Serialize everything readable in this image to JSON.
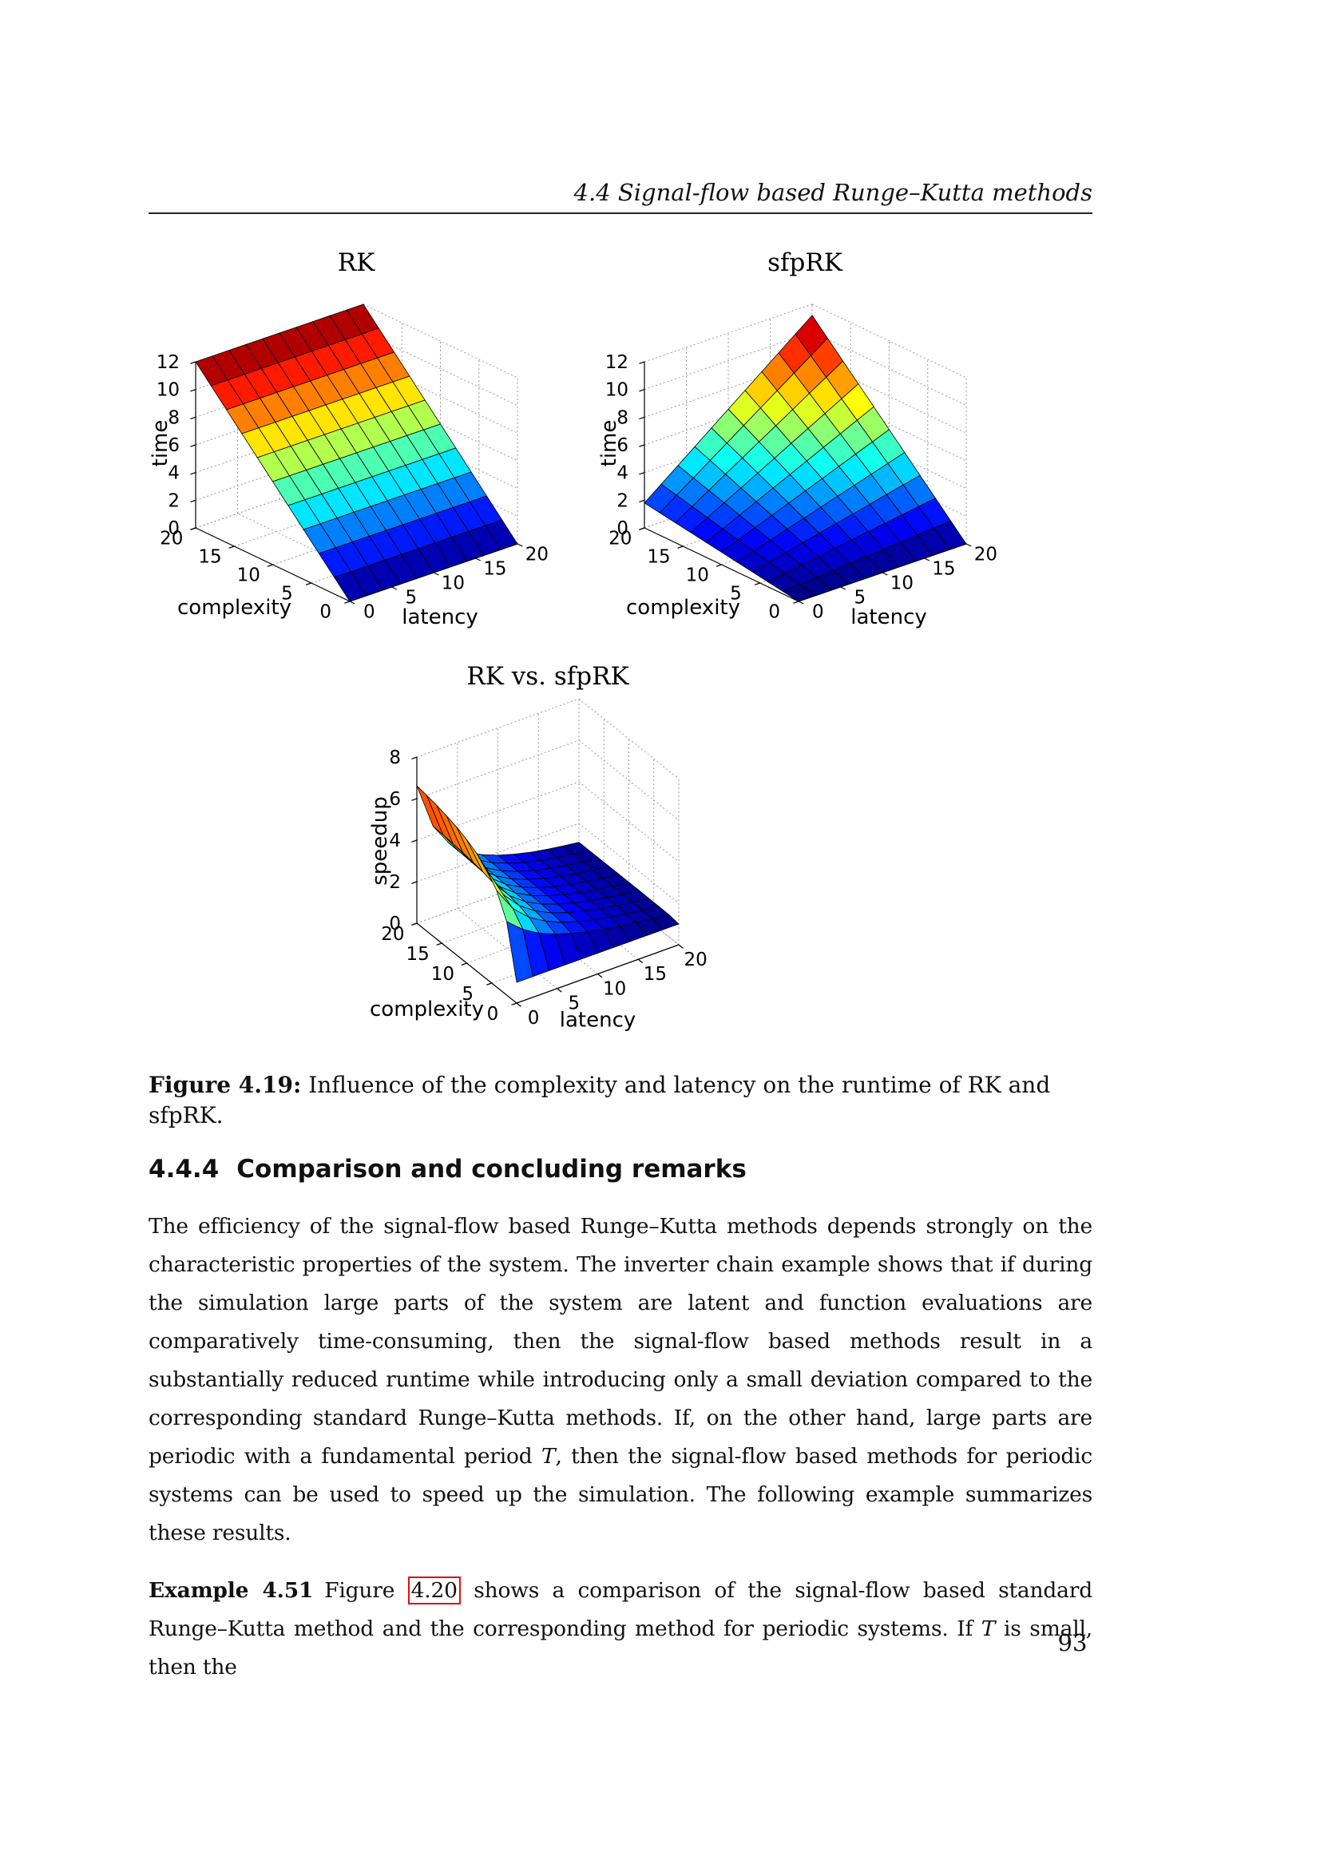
{
  "document": {
    "running_header": "4.4 Signal-flow based Runge–Kutta methods",
    "figure_caption": {
      "label": "Figure 4.19:",
      "text": " Influence of the complexity and latency on the runtime of RK and sfpRK."
    },
    "section_heading": {
      "number": "4.4.4",
      "title": "Comparison and concluding remarks"
    },
    "paragraph": {
      "part1": "The efficiency of the signal-flow based Runge–Kutta methods depends strongly on the characteristic properties of the system. The inverter chain example shows that if during the simulation large parts of the system are latent and function evaluations are comparatively time-consuming, then the signal-flow based methods result in a substantially reduced runtime while introducing only a small deviation compared to the corresponding standard Runge–Kutta methods. If, on the other hand, large parts are periodic with a fundamental period ",
      "math_t": "T",
      "part2": ", then the signal-flow based methods for periodic systems can be used to speed up the simulation. The following example summarizes these results."
    },
    "example": {
      "label": "Example 4.51",
      "part1": "Figure ",
      "figure_link": "4.20",
      "part2": " shows a comparison of the signal-flow based standard Runge–Kutta method and the corresponding method for periodic systems. If ",
      "math_t": "T",
      "part3": " is small, then the"
    },
    "page_number": "93",
    "link_box_color": "#dd1111"
  },
  "chart_data": [
    {
      "type": "surface",
      "id": "c-rk",
      "title": "RK",
      "xlabel": "latency",
      "ylabel": "complexity",
      "zlabel": "time",
      "x": [
        0,
        2,
        4,
        6,
        8,
        10,
        12,
        14,
        16,
        18,
        20
      ],
      "y": [
        0,
        2,
        4,
        6,
        8,
        10,
        12,
        14,
        16,
        18,
        20
      ],
      "z": [
        [
          0,
          0,
          0,
          0,
          0,
          0,
          0,
          0,
          0,
          0,
          0
        ],
        [
          1.2,
          1.2,
          1.2,
          1.2,
          1.2,
          1.2,
          1.2,
          1.2,
          1.2,
          1.2,
          1.2
        ],
        [
          2.4,
          2.4,
          2.4,
          2.4,
          2.4,
          2.4,
          2.4,
          2.4,
          2.4,
          2.4,
          2.4
        ],
        [
          3.6,
          3.6,
          3.6,
          3.6,
          3.6,
          3.6,
          3.6,
          3.6,
          3.6,
          3.6,
          3.6
        ],
        [
          4.8,
          4.8,
          4.8,
          4.8,
          4.8,
          4.8,
          4.8,
          4.8,
          4.8,
          4.8,
          4.8
        ],
        [
          6,
          6,
          6,
          6,
          6,
          6,
          6,
          6,
          6,
          6,
          6
        ],
        [
          7.2,
          7.2,
          7.2,
          7.2,
          7.2,
          7.2,
          7.2,
          7.2,
          7.2,
          7.2,
          7.2
        ],
        [
          8.4,
          8.4,
          8.4,
          8.4,
          8.4,
          8.4,
          8.4,
          8.4,
          8.4,
          8.4,
          8.4
        ],
        [
          9.6,
          9.6,
          9.6,
          9.6,
          9.6,
          9.6,
          9.6,
          9.6,
          9.6,
          9.6,
          9.6
        ],
        [
          10.8,
          10.8,
          10.8,
          10.8,
          10.8,
          10.8,
          10.8,
          10.8,
          10.8,
          10.8,
          10.8
        ],
        [
          12,
          12,
          12,
          12,
          12,
          12,
          12,
          12,
          12,
          12,
          12
        ]
      ],
      "xticks": [
        0,
        5,
        10,
        15,
        20
      ],
      "yticks": [
        0,
        5,
        10,
        15,
        20
      ],
      "zticks": [
        0,
        2,
        4,
        6,
        8,
        10,
        12
      ],
      "zlim": [
        0,
        12
      ],
      "caxis": [
        0,
        12
      ],
      "colormap": "jet",
      "grid": "dotted"
    },
    {
      "type": "surface",
      "id": "c-sfprk",
      "title": "sfpRK",
      "xlabel": "latency",
      "ylabel": "complexity",
      "zlabel": "time",
      "x": [
        0,
        2,
        4,
        6,
        8,
        10,
        12,
        14,
        16,
        18,
        20
      ],
      "y": [
        0,
        2,
        4,
        6,
        8,
        10,
        12,
        14,
        16,
        18,
        20
      ],
      "z": [
        [
          0,
          0,
          0,
          0,
          0,
          0,
          0,
          0,
          0,
          0,
          0
        ],
        [
          0.18,
          0.27,
          0.37,
          0.46,
          0.56,
          0.65,
          0.74,
          0.84,
          0.93,
          1.03,
          1.12
        ],
        [
          0.36,
          0.55,
          0.74,
          0.92,
          1.11,
          1.3,
          1.49,
          1.68,
          1.86,
          2.05,
          2.24
        ],
        [
          0.54,
          0.82,
          1.1,
          1.39,
          1.67,
          1.95,
          2.23,
          2.51,
          2.8,
          3.08,
          3.36
        ],
        [
          0.72,
          1.1,
          1.47,
          1.85,
          2.22,
          2.6,
          2.98,
          3.35,
          3.73,
          4.1,
          4.48
        ],
        [
          0.9,
          1.37,
          1.84,
          2.31,
          2.78,
          3.25,
          3.72,
          4.19,
          4.66,
          5.13,
          5.6
        ],
        [
          1.08,
          1.64,
          2.21,
          2.77,
          3.34,
          3.9,
          4.46,
          5.03,
          5.59,
          6.16,
          6.72
        ],
        [
          1.26,
          1.92,
          2.58,
          3.23,
          3.89,
          4.55,
          5.21,
          5.87,
          6.52,
          7.18,
          7.84
        ],
        [
          1.44,
          2.19,
          2.94,
          3.7,
          4.45,
          5.2,
          5.95,
          6.7,
          7.46,
          8.21,
          8.96
        ],
        [
          1.62,
          2.47,
          3.31,
          4.16,
          5.0,
          5.85,
          6.7,
          7.54,
          8.39,
          9.23,
          10.08
        ],
        [
          1.8,
          2.74,
          3.68,
          4.62,
          5.56,
          6.5,
          7.44,
          8.38,
          9.32,
          10.26,
          11.2
        ]
      ],
      "xticks": [
        0,
        5,
        10,
        15,
        20
      ],
      "yticks": [
        0,
        5,
        10,
        15,
        20
      ],
      "zticks": [
        0,
        2,
        4,
        6,
        8,
        10,
        12
      ],
      "zlim": [
        0,
        12
      ],
      "caxis": [
        0,
        11.2
      ],
      "colormap": "jet",
      "grid": "dotted"
    },
    {
      "type": "surface",
      "id": "c-speedup",
      "title": "RK vs. sfpRK",
      "xlabel": "latency",
      "ylabel": "complexity",
      "zlabel": "speedup",
      "x": [
        0,
        2,
        4,
        6,
        8,
        10,
        12,
        14,
        16,
        18,
        20
      ],
      "y": [
        0,
        2,
        4,
        6,
        8,
        10,
        12,
        14,
        16,
        18,
        20
      ],
      "z": [
        [
          1,
          1,
          1,
          1,
          1,
          1,
          1,
          1,
          1,
          1,
          1
        ],
        [
          3.54,
          2.88,
          2.42,
          2.1,
          1.84,
          1.65,
          1.49,
          1.36,
          1.25,
          1.15,
          1.07
        ],
        [
          4.65,
          3.5,
          2.8,
          2.34,
          2.0,
          1.75,
          1.56,
          1.41,
          1.28,
          1.17,
          1.08
        ],
        [
          5.27,
          3.8,
          2.98,
          2.44,
          2.07,
          1.8,
          1.59,
          1.42,
          1.29,
          1.18,
          1.08
        ],
        [
          5.67,
          3.99,
          3.08,
          2.5,
          2.11,
          1.82,
          1.61,
          1.43,
          1.3,
          1.18,
          1.09
        ],
        [
          5.95,
          4.11,
          3.14,
          2.54,
          2.13,
          1.84,
          1.62,
          1.44,
          1.3,
          1.18,
          1.09
        ],
        [
          6.16,
          4.2,
          3.19,
          2.57,
          2.15,
          1.85,
          1.62,
          1.44,
          1.3,
          1.19,
          1.09
        ],
        [
          6.31,
          4.27,
          3.22,
          2.59,
          2.16,
          1.86,
          1.63,
          1.45,
          1.3,
          1.19,
          1.09
        ],
        [
          6.44,
          4.32,
          3.25,
          2.6,
          2.17,
          1.86,
          1.63,
          1.45,
          1.31,
          1.19,
          1.09
        ],
        [
          6.54,
          4.36,
          3.27,
          2.61,
          2.18,
          1.87,
          1.63,
          1.45,
          1.31,
          1.19,
          1.09
        ],
        [
          6.62,
          4.39,
          3.28,
          2.62,
          2.18,
          1.87,
          1.64,
          1.45,
          1.31,
          1.19,
          1.09
        ]
      ],
      "xticks": [
        0,
        5,
        10,
        15,
        20
      ],
      "yticks": [
        0,
        5,
        10,
        15,
        20
      ],
      "zticks": [
        0,
        2,
        4,
        6,
        8
      ],
      "zlim": [
        0,
        8
      ],
      "caxis": [
        1,
        6.62
      ],
      "colormap": "jet",
      "grid": "dotted"
    }
  ]
}
